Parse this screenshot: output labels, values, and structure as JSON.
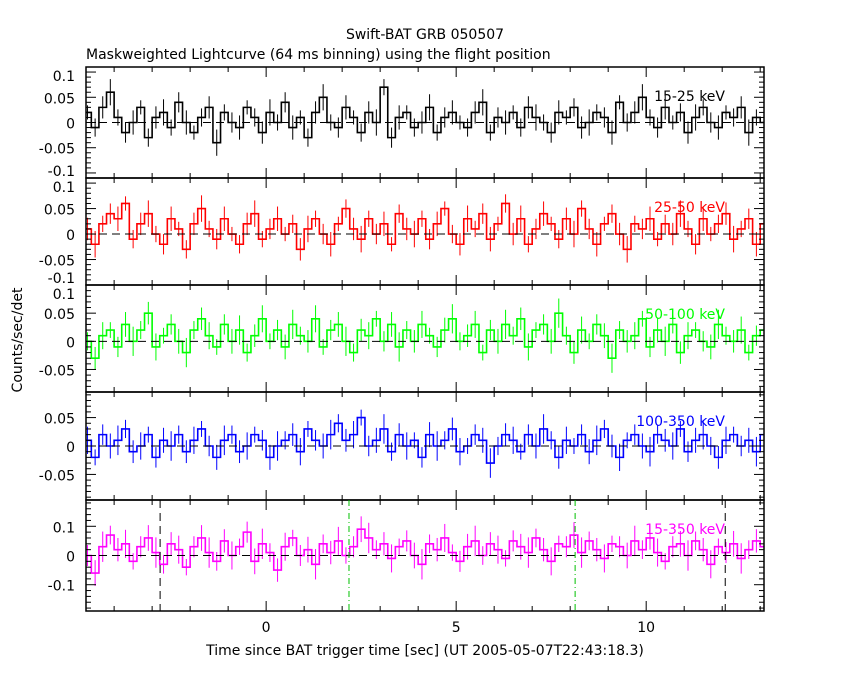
{
  "chart_data": {
    "type": "line",
    "title": "Swift-BAT GRB 050507",
    "subtitle": "Maskweighted Lightcurve (64 ms binning) using the flight position",
    "xlabel": "Time since BAT trigger time [sec] (UT 2005-05-07T22:43:18.3)",
    "ylabel": "Counts/sec/det",
    "xlim": [
      -4.74,
      13.1
    ],
    "xticks": [
      0,
      5,
      10
    ],
    "xtick_labels": [
      "0",
      "5",
      "10"
    ],
    "x_start": -4.7,
    "bin_width": 0.2,
    "markers": {
      "dashed_black": [
        -2.79,
        12.08
      ],
      "dashdot_green": [
        2.18,
        8.13
      ]
    },
    "series": [
      {
        "name": "15-25 keV",
        "color": "#000000",
        "ylim": [
          -0.11,
          0.11
        ],
        "yticks": [
          0.1,
          0.05,
          0,
          -0.05,
          -0.1
        ],
        "ytick_labels": [
          "0.1",
          "0.05",
          "0",
          "-0.05",
          "-0.1"
        ],
        "typical_error": 0.02,
        "values": [
          0.02,
          -0.01,
          0.03,
          0.06,
          0.01,
          -0.02,
          0.0,
          0.03,
          -0.03,
          0.01,
          0.02,
          -0.01,
          0.04,
          0.0,
          -0.02,
          0.01,
          0.03,
          -0.04,
          0.02,
          0.0,
          -0.01,
          0.03,
          0.01,
          -0.02,
          0.02,
          0.0,
          0.04,
          -0.01,
          0.01,
          -0.03,
          0.02,
          0.05,
          0.0,
          -0.01,
          0.03,
          0.01,
          -0.02,
          0.02,
          0.0,
          0.07,
          -0.03,
          0.01,
          0.02,
          -0.01,
          0.0,
          0.03,
          -0.02,
          0.01,
          0.02,
          0.0,
          -0.01,
          0.02,
          0.04,
          -0.02,
          0.01,
          0.0,
          0.02,
          -0.01,
          0.03,
          0.01,
          0.0,
          -0.02,
          0.02,
          0.01,
          0.03,
          -0.01,
          0.0,
          0.02,
          0.01,
          -0.02,
          0.04,
          0.0,
          0.02,
          0.05,
          0.01,
          -0.01,
          0.03,
          0.0,
          0.02,
          -0.02,
          0.01,
          0.03,
          0.0,
          -0.01,
          0.02,
          0.01,
          0.03,
          -0.02,
          0.01,
          0.0
        ]
      },
      {
        "name": "25-50 keV",
        "color": "#ff0000",
        "ylim": [
          -0.1,
          0.11
        ],
        "yticks": [
          0.1,
          0.05,
          0,
          -0.05,
          -0.1
        ],
        "ytick_labels": [
          "0.1",
          "0.05",
          "0",
          "-0.05",
          "-0.1"
        ],
        "typical_error": 0.02,
        "values": [
          0.01,
          -0.02,
          0.02,
          0.04,
          0.03,
          0.06,
          -0.01,
          0.02,
          0.04,
          0.0,
          -0.02,
          0.03,
          0.01,
          -0.03,
          0.02,
          0.05,
          0.01,
          -0.01,
          0.03,
          0.0,
          -0.02,
          0.02,
          0.04,
          -0.01,
          0.01,
          0.03,
          0.0,
          0.02,
          -0.03,
          0.01,
          0.03,
          0.0,
          -0.02,
          0.02,
          0.05,
          0.01,
          -0.01,
          0.03,
          0.0,
          0.02,
          -0.02,
          0.04,
          0.01,
          0.0,
          0.03,
          -0.01,
          0.02,
          0.05,
          0.0,
          -0.02,
          0.03,
          0.01,
          0.04,
          -0.01,
          0.02,
          0.06,
          0.0,
          0.03,
          -0.02,
          0.01,
          0.04,
          0.02,
          -0.01,
          0.03,
          0.0,
          0.05,
          0.01,
          -0.02,
          0.02,
          0.04,
          0.0,
          -0.03,
          0.02,
          0.01,
          0.03,
          -0.01,
          0.02,
          0.0,
          0.04,
          0.01,
          -0.02,
          0.03,
          0.0,
          0.02,
          0.04,
          -0.01,
          0.01,
          0.03,
          -0.02,
          0.02
        ]
      },
      {
        "name": "50-100 keV",
        "color": "#00ff00",
        "ylim": [
          -0.09,
          0.1
        ],
        "yticks": [
          0.1,
          0.05,
          0,
          -0.05
        ],
        "ytick_labels": [
          "0.1",
          "0.05",
          "0",
          "-0.05"
        ],
        "typical_error": 0.02,
        "values": [
          0.0,
          -0.03,
          0.01,
          0.02,
          -0.01,
          0.03,
          0.0,
          0.02,
          0.05,
          -0.01,
          0.01,
          0.03,
          0.0,
          -0.02,
          0.02,
          0.04,
          0.01,
          -0.01,
          0.03,
          0.0,
          0.02,
          -0.02,
          0.01,
          0.04,
          0.0,
          0.02,
          -0.01,
          0.03,
          0.01,
          0.0,
          0.04,
          -0.01,
          0.02,
          0.03,
          0.0,
          -0.02,
          0.02,
          0.01,
          0.04,
          0.0,
          0.03,
          -0.01,
          0.02,
          0.0,
          0.03,
          0.01,
          -0.01,
          0.02,
          0.04,
          0.0,
          0.01,
          0.03,
          -0.02,
          0.02,
          0.0,
          0.03,
          0.01,
          0.04,
          -0.01,
          0.02,
          0.03,
          0.0,
          0.05,
          0.01,
          -0.02,
          0.02,
          0.0,
          0.03,
          0.01,
          -0.03,
          0.02,
          0.0,
          0.01,
          0.04,
          -0.01,
          0.02,
          0.0,
          0.03,
          -0.02,
          0.01,
          0.02,
          0.0,
          -0.01,
          0.03,
          0.01,
          0.0,
          0.02,
          -0.02,
          0.01,
          0.02
        ]
      },
      {
        "name": "100-350 keV",
        "color": "#0000ff",
        "ylim": [
          -0.095,
          0.095
        ],
        "yticks": [
          0.05,
          0,
          -0.05
        ],
        "ytick_labels": [
          "0.05",
          "0",
          "-0.05"
        ],
        "typical_error": 0.02,
        "values": [
          0.01,
          -0.02,
          0.02,
          0.0,
          0.01,
          0.03,
          -0.01,
          0.0,
          0.02,
          -0.02,
          0.01,
          0.0,
          0.02,
          -0.01,
          0.01,
          0.03,
          0.0,
          -0.02,
          0.01,
          0.02,
          -0.01,
          0.0,
          0.02,
          0.01,
          -0.02,
          0.0,
          0.01,
          0.02,
          -0.01,
          0.03,
          0.01,
          0.0,
          0.02,
          0.04,
          0.01,
          0.02,
          0.05,
          0.0,
          0.01,
          0.03,
          -0.01,
          0.02,
          0.0,
          0.01,
          -0.02,
          0.02,
          0.0,
          0.01,
          0.03,
          -0.01,
          0.0,
          0.02,
          0.01,
          -0.03,
          0.0,
          0.02,
          0.01,
          -0.01,
          0.02,
          0.0,
          0.03,
          0.01,
          -0.02,
          0.01,
          0.0,
          0.02,
          -0.01,
          0.01,
          0.03,
          0.0,
          -0.02,
          0.01,
          0.02,
          0.0,
          -0.01,
          0.02,
          0.01,
          0.0,
          0.03,
          -0.01,
          0.01,
          0.02,
          0.0,
          -0.02,
          0.01,
          0.02,
          0.0,
          0.01,
          -0.01,
          0.02
        ]
      },
      {
        "name": "15-350 keV",
        "color": "#ff00ff",
        "ylim": [
          -0.19,
          0.19
        ],
        "yticks": [
          0.1,
          0,
          -0.1
        ],
        "ytick_labels": [
          "0.1",
          "0",
          "-0.1"
        ],
        "typical_error": 0.04,
        "values": [
          0.0,
          -0.06,
          0.03,
          0.07,
          0.02,
          0.04,
          -0.02,
          0.03,
          0.06,
          0.01,
          -0.03,
          0.04,
          0.02,
          -0.04,
          0.03,
          0.06,
          0.01,
          -0.02,
          0.05,
          0.0,
          0.03,
          0.08,
          -0.02,
          0.04,
          0.01,
          -0.05,
          0.03,
          0.06,
          0.0,
          0.02,
          -0.03,
          0.04,
          0.01,
          0.05,
          0.0,
          0.03,
          0.09,
          0.06,
          0.02,
          0.04,
          -0.01,
          0.03,
          0.05,
          0.0,
          -0.03,
          0.04,
          0.02,
          0.06,
          0.01,
          -0.02,
          0.03,
          0.05,
          0.0,
          0.04,
          0.02,
          -0.01,
          0.05,
          0.03,
          0.01,
          0.06,
          0.02,
          -0.02,
          0.04,
          0.03,
          0.07,
          0.01,
          0.05,
          0.02,
          -0.01,
          0.04,
          0.03,
          0.0,
          0.05,
          0.02,
          0.06,
          0.01,
          -0.02,
          0.03,
          0.04,
          0.0,
          0.05,
          0.02,
          -0.03,
          0.03,
          0.01,
          0.04,
          -0.01,
          0.02,
          0.05,
          0.03
        ]
      }
    ]
  }
}
